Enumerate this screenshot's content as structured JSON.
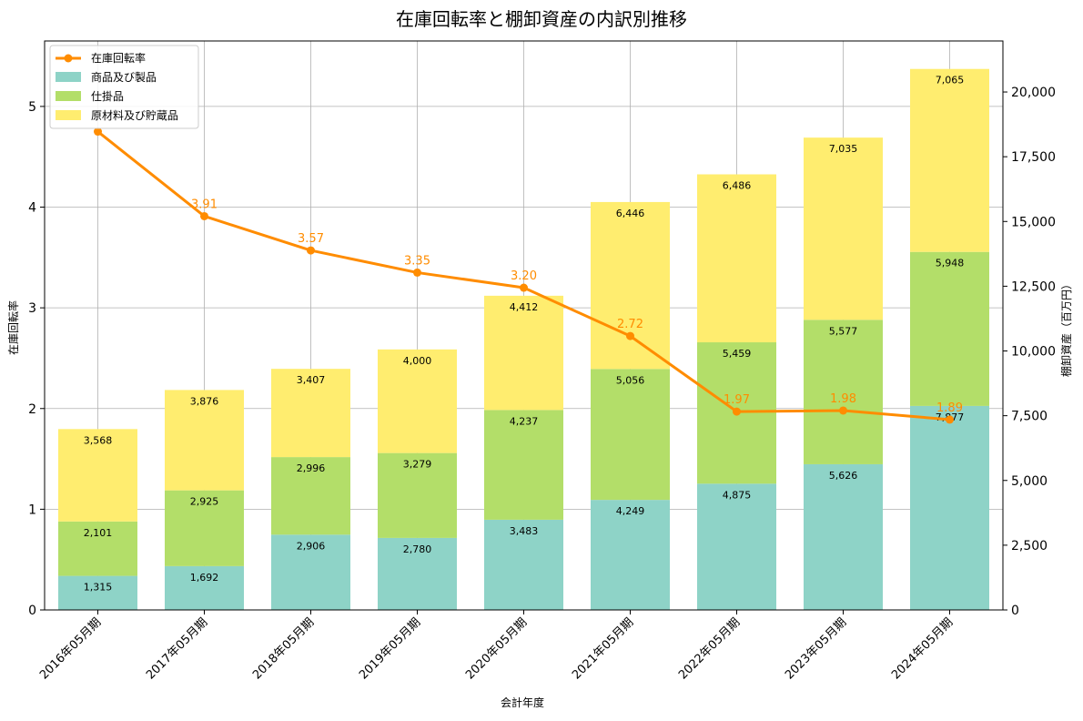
{
  "chart_data": {
    "type": "bar",
    "stacked": true,
    "title": "在庫回転率と棚卸資産の内訳別推移",
    "xlabel": "会計年度",
    "ylabel_left": "在庫回転率",
    "ylabel_right": "棚卸資産（百万円）",
    "ylim_left": [
      0,
      5.65
    ],
    "ylim_right": [
      0,
      21970
    ],
    "yticks_left": [
      0,
      1,
      2,
      3,
      4,
      5
    ],
    "yticks_right": [
      0,
      2500,
      5000,
      7500,
      10000,
      12500,
      15000,
      17500,
      20000
    ],
    "yticks_right_labels": [
      "0",
      "2,500",
      "5,000",
      "7,500",
      "10,000",
      "12,500",
      "15,000",
      "17,500",
      "20,000"
    ],
    "grid": true,
    "legend_position": "top-left",
    "categories": [
      "2016年05月期",
      "2017年05月期",
      "2018年05月期",
      "2019年05月期",
      "2020年05月期",
      "2021年05月期",
      "2022年05月期",
      "2023年05月期",
      "2024年05月期"
    ],
    "series": [
      {
        "name": "商品及び製品",
        "axis": "right",
        "color": "#8ed3c7",
        "values": [
          1315,
          1692,
          2906,
          2780,
          3483,
          4249,
          4875,
          5626,
          7877
        ],
        "labels": [
          "1,315",
          "1,692",
          "2,906",
          "2,780",
          "3,483",
          "4,249",
          "4,875",
          "5,626",
          "7,877"
        ]
      },
      {
        "name": "仕掛品",
        "axis": "right",
        "color": "#b3de69",
        "values": [
          2101,
          2925,
          2996,
          3279,
          4237,
          5056,
          5459,
          5577,
          5948
        ],
        "labels": [
          "2,101",
          "2,925",
          "2,996",
          "3,279",
          "4,237",
          "5,056",
          "5,459",
          "5,577",
          "5,948"
        ]
      },
      {
        "name": "原材料及び貯蔵品",
        "axis": "right",
        "color": "#ffed6f",
        "values": [
          3568,
          3876,
          3407,
          4000,
          4412,
          6446,
          6486,
          7035,
          7065
        ],
        "labels": [
          "3,568",
          "3,876",
          "3,407",
          "4,000",
          "4,412",
          "6,446",
          "6,486",
          "7,035",
          "7,065"
        ]
      }
    ],
    "line": {
      "name": "在庫回転率",
      "axis": "left",
      "color": "#ff8c00",
      "values": [
        4.75,
        3.91,
        3.57,
        3.35,
        3.2,
        2.72,
        1.97,
        1.98,
        1.89
      ],
      "labels": [
        "",
        "3.91",
        "3.57",
        "3.35",
        "3.20",
        "2.72",
        "1.97",
        "1.98",
        "1.89"
      ]
    }
  }
}
